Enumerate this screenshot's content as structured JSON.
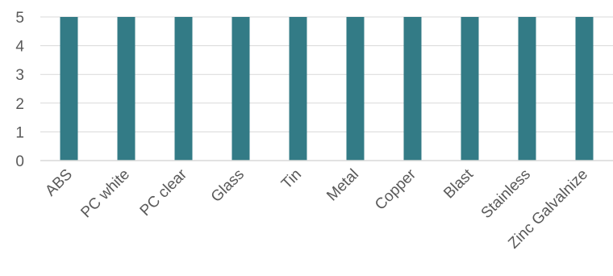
{
  "chart_data": {
    "type": "bar",
    "categories": [
      "ABS",
      "PC white",
      "PC clear",
      "Glass",
      "Tin",
      "Metal",
      "Copper",
      "Blast",
      "Stainless",
      "Zinc Galvalnize"
    ],
    "values": [
      5,
      5,
      5,
      5,
      5,
      5,
      5,
      5,
      5,
      5
    ],
    "title": "",
    "xlabel": "",
    "ylabel": "",
    "ylim": [
      0,
      5
    ],
    "yticks": [
      "0",
      "1",
      "2",
      "3",
      "4",
      "5"
    ],
    "grid": true,
    "legend": "none",
    "bar_color": "#337b86",
    "grid_color": "#d9d9d9",
    "label_color": "#595959"
  }
}
